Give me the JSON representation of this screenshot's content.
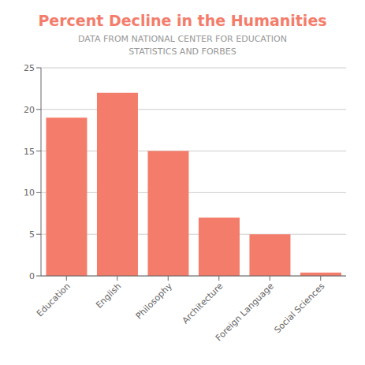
{
  "chart_data": {
    "type": "bar",
    "title": "Percent Decline in the Humanities",
    "subtitle": "DATA FROM NATIONAL CENTER FOR EDUCATION\nSTATISTICS AND FORBES",
    "categories": [
      "Education",
      "English",
      "Philosophy",
      "Architecture",
      "Foreign Language",
      "Social Sciences"
    ],
    "values": [
      19,
      22,
      15,
      7,
      5,
      0.4
    ],
    "color": "#F47C6A",
    "ylim": [
      0,
      25
    ],
    "yticks": [
      0,
      5,
      10,
      15,
      20,
      25
    ],
    "grid": true
  }
}
